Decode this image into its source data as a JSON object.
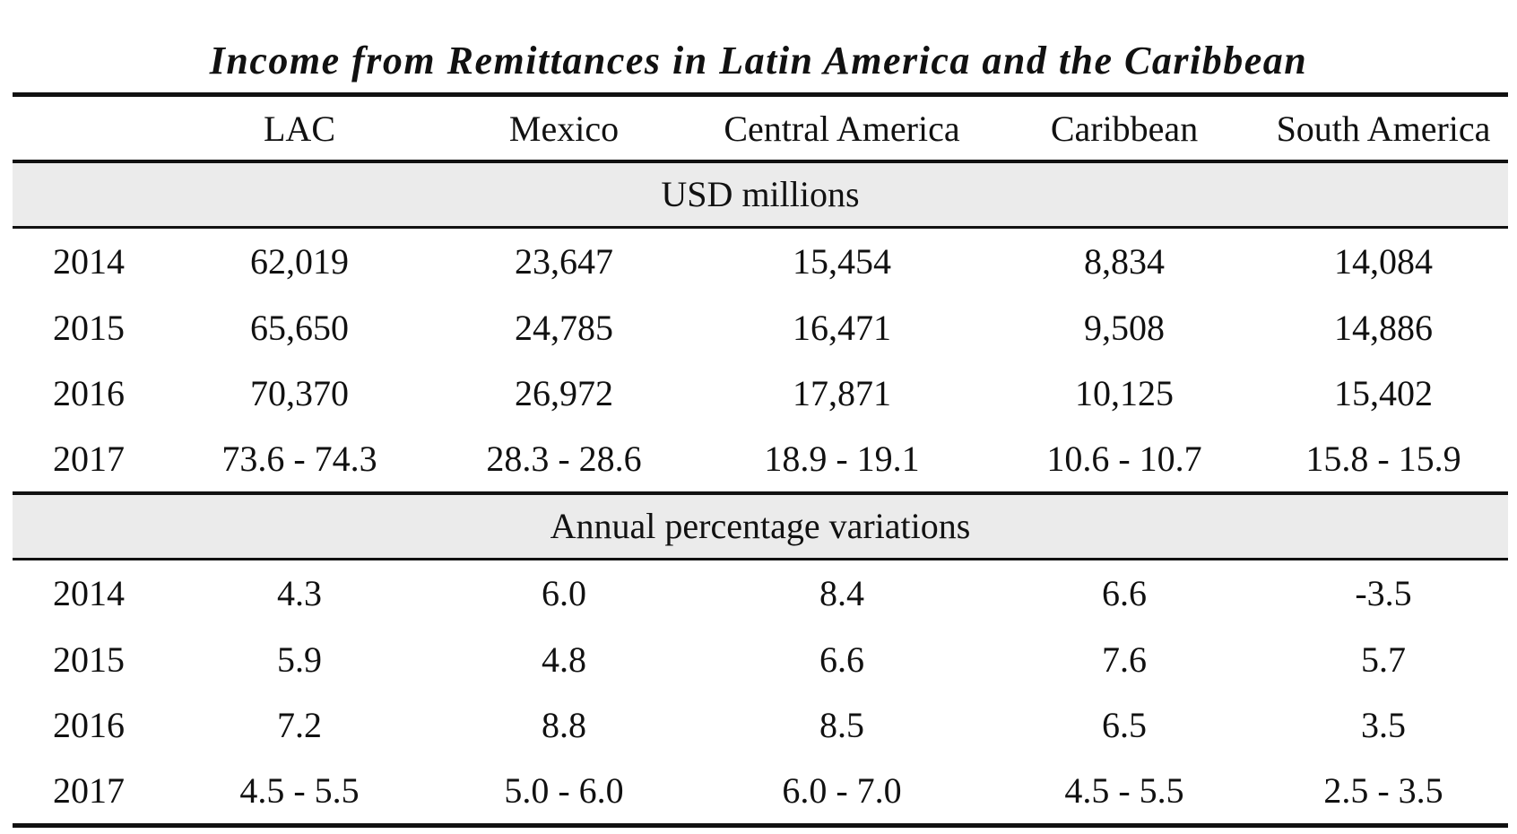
{
  "title": "Income from Remittances in Latin America and the Caribbean",
  "columns": [
    "",
    "LAC",
    "Mexico",
    "Central America",
    "Caribbean",
    "South America"
  ],
  "sections": [
    {
      "label": "USD millions",
      "rows": [
        {
          "year": "2014",
          "values": [
            "62,019",
            "23,647",
            "15,454",
            "8,834",
            "14,084"
          ]
        },
        {
          "year": "2015",
          "values": [
            "65,650",
            "24,785",
            "16,471",
            "9,508",
            "14,886"
          ]
        },
        {
          "year": "2016",
          "values": [
            "70,370",
            "26,972",
            "17,871",
            "10,125",
            "15,402"
          ]
        },
        {
          "year": "2017",
          "values": [
            "73.6 - 74.3",
            "28.3 - 28.6",
            "18.9 - 19.1",
            "10.6 - 10.7",
            "15.8 - 15.9"
          ]
        }
      ]
    },
    {
      "label": "Annual percentage variations",
      "rows": [
        {
          "year": "2014",
          "values": [
            "4.3",
            "6.0",
            "8.4",
            "6.6",
            "-3.5"
          ]
        },
        {
          "year": "2015",
          "values": [
            "5.9",
            "4.8",
            "6.6",
            "7.6",
            "5.7"
          ]
        },
        {
          "year": "2016",
          "values": [
            "7.2",
            "8.8",
            "8.5",
            "6.5",
            "3.5"
          ]
        },
        {
          "year": "2017",
          "values": [
            "4.5 - 5.5",
            "5.0 - 6.0",
            "6.0 - 7.0",
            "4.5 - 5.5",
            "2.5 - 3.5"
          ]
        }
      ]
    }
  ]
}
